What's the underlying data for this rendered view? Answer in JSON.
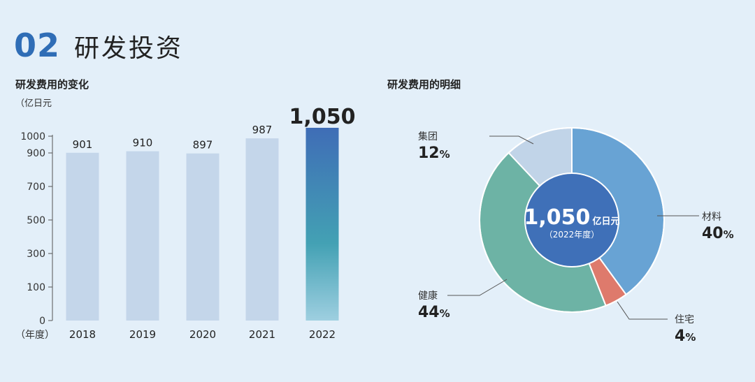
{
  "section": {
    "number": "02",
    "title": "研发投资"
  },
  "bar_chart_title": "研发费用的变化",
  "donut_chart_title": "研发费用的明细",
  "colors": {
    "bar": "#c4d6ea",
    "highlight_top": "#3f6db6",
    "highlight_mid": "#43a1b4",
    "highlight_bottom": "#9ecfe0",
    "axis": "#555555",
    "leader": "#555555"
  },
  "chart_data": [
    {
      "type": "bar",
      "title": "研发费用的变化",
      "ylabel": "（亿日元",
      "xlabel": "（年度）",
      "categories": [
        "2018",
        "2019",
        "2020",
        "2021",
        "2022"
      ],
      "values": [
        901,
        910,
        897,
        987,
        1050
      ],
      "value_labels": [
        "901",
        "910",
        "897",
        "987",
        "1,050"
      ],
      "yticks": [
        "0",
        "100",
        "300",
        "500",
        "700",
        "900",
        "1000"
      ],
      "highlight_index": 4,
      "grid": false
    },
    {
      "type": "pie",
      "title": "研发费用的明细",
      "center_value": "1,050",
      "center_unit": "亿日元",
      "center_sub": "（2022年度）",
      "slices": [
        {
          "name": "材料",
          "value": 40,
          "label": "40",
          "color": "#68a3d4"
        },
        {
          "name": "住宅",
          "value": 4,
          "label": "4",
          "color": "#de7a6c"
        },
        {
          "name": "健康",
          "value": 44,
          "label": "44",
          "color": "#6db3a5"
        },
        {
          "name": "集团",
          "value": 12,
          "label": "12",
          "color": "#c1d4e8"
        }
      ],
      "percent_sign": "%",
      "center_color": "#3f70b8"
    }
  ]
}
